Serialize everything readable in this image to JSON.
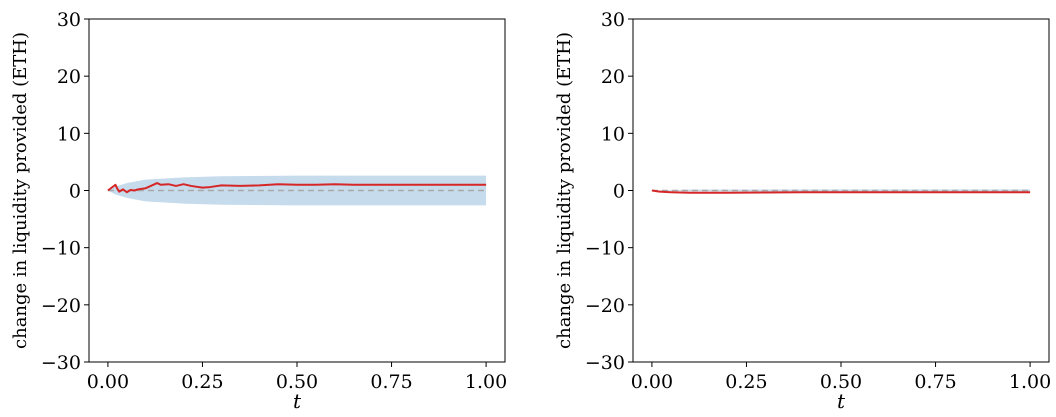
{
  "chart_data": [
    {
      "type": "line",
      "xlabel": "t",
      "ylabel": "change in liquidity provided  (ETH)",
      "xlim": [
        -0.05,
        1.05
      ],
      "ylim": [
        -30,
        30
      ],
      "xticks": [
        "0.00",
        "0.25",
        "0.50",
        "0.75",
        "1.00"
      ],
      "yticks": [
        "−30",
        "−20",
        "−10",
        "0",
        "10",
        "20",
        "30"
      ],
      "xtick_values": [
        0.0,
        0.25,
        0.5,
        0.75,
        1.0
      ],
      "ytick_values": [
        -30,
        -20,
        -10,
        0,
        10,
        20,
        30
      ],
      "band": {
        "x": [
          0.0,
          0.02,
          0.05,
          0.1,
          0.15,
          0.2,
          0.3,
          0.5,
          0.75,
          1.0
        ],
        "upper": [
          0.0,
          0.7,
          1.3,
          1.9,
          2.1,
          2.3,
          2.5,
          2.6,
          2.6,
          2.6
        ],
        "lower": [
          0.0,
          -0.7,
          -1.3,
          -1.9,
          -2.1,
          -2.3,
          -2.5,
          -2.6,
          -2.6,
          -2.6
        ]
      },
      "baseline": 0,
      "series": [
        {
          "x": [
            0.0,
            0.01,
            0.02,
            0.025,
            0.03,
            0.04,
            0.05,
            0.06,
            0.07,
            0.08,
            0.1,
            0.12,
            0.13,
            0.14,
            0.16,
            0.18,
            0.2,
            0.22,
            0.25,
            0.27,
            0.3,
            0.35,
            0.4,
            0.45,
            0.5,
            0.55,
            0.6,
            0.65,
            0.7,
            0.8,
            0.9,
            1.0
          ],
          "y": [
            0.0,
            0.5,
            1.0,
            0.3,
            -0.2,
            0.2,
            -0.3,
            0.1,
            0.0,
            0.2,
            0.4,
            1.0,
            1.3,
            1.0,
            1.1,
            0.8,
            1.1,
            0.8,
            0.5,
            0.6,
            0.9,
            0.8,
            0.9,
            1.1,
            1.0,
            1.0,
            1.1,
            1.0,
            1.0,
            1.0,
            1.0,
            1.0
          ]
        }
      ]
    },
    {
      "type": "line",
      "xlabel": "t",
      "ylabel": "change in liquidity provided  (ETH)",
      "xlim": [
        -0.05,
        1.05
      ],
      "ylim": [
        -30,
        30
      ],
      "xticks": [
        "0.00",
        "0.25",
        "0.50",
        "0.75",
        "1.00"
      ],
      "yticks": [
        "−30",
        "−20",
        "−10",
        "0",
        "10",
        "20",
        "30"
      ],
      "xtick_values": [
        0.0,
        0.25,
        0.5,
        0.75,
        1.0
      ],
      "ytick_values": [
        -30,
        -20,
        -10,
        0,
        10,
        20,
        30
      ],
      "band": {
        "x": [
          0.0,
          0.1,
          0.5,
          1.0
        ],
        "upper": [
          0.0,
          0.15,
          0.2,
          0.2
        ],
        "lower": [
          0.0,
          -0.15,
          -0.2,
          -0.2
        ]
      },
      "baseline": 0,
      "series": [
        {
          "x": [
            0.0,
            0.02,
            0.05,
            0.1,
            0.2,
            0.3,
            0.4,
            0.5,
            0.6,
            0.7,
            0.8,
            0.9,
            1.0
          ],
          "y": [
            0.0,
            -0.2,
            -0.3,
            -0.4,
            -0.4,
            -0.35,
            -0.3,
            -0.3,
            -0.3,
            -0.3,
            -0.3,
            -0.3,
            -0.3
          ]
        }
      ]
    }
  ],
  "colors": {
    "band": "#c6dbec",
    "line": "#d62728",
    "baseline": "#a8a8a8"
  }
}
